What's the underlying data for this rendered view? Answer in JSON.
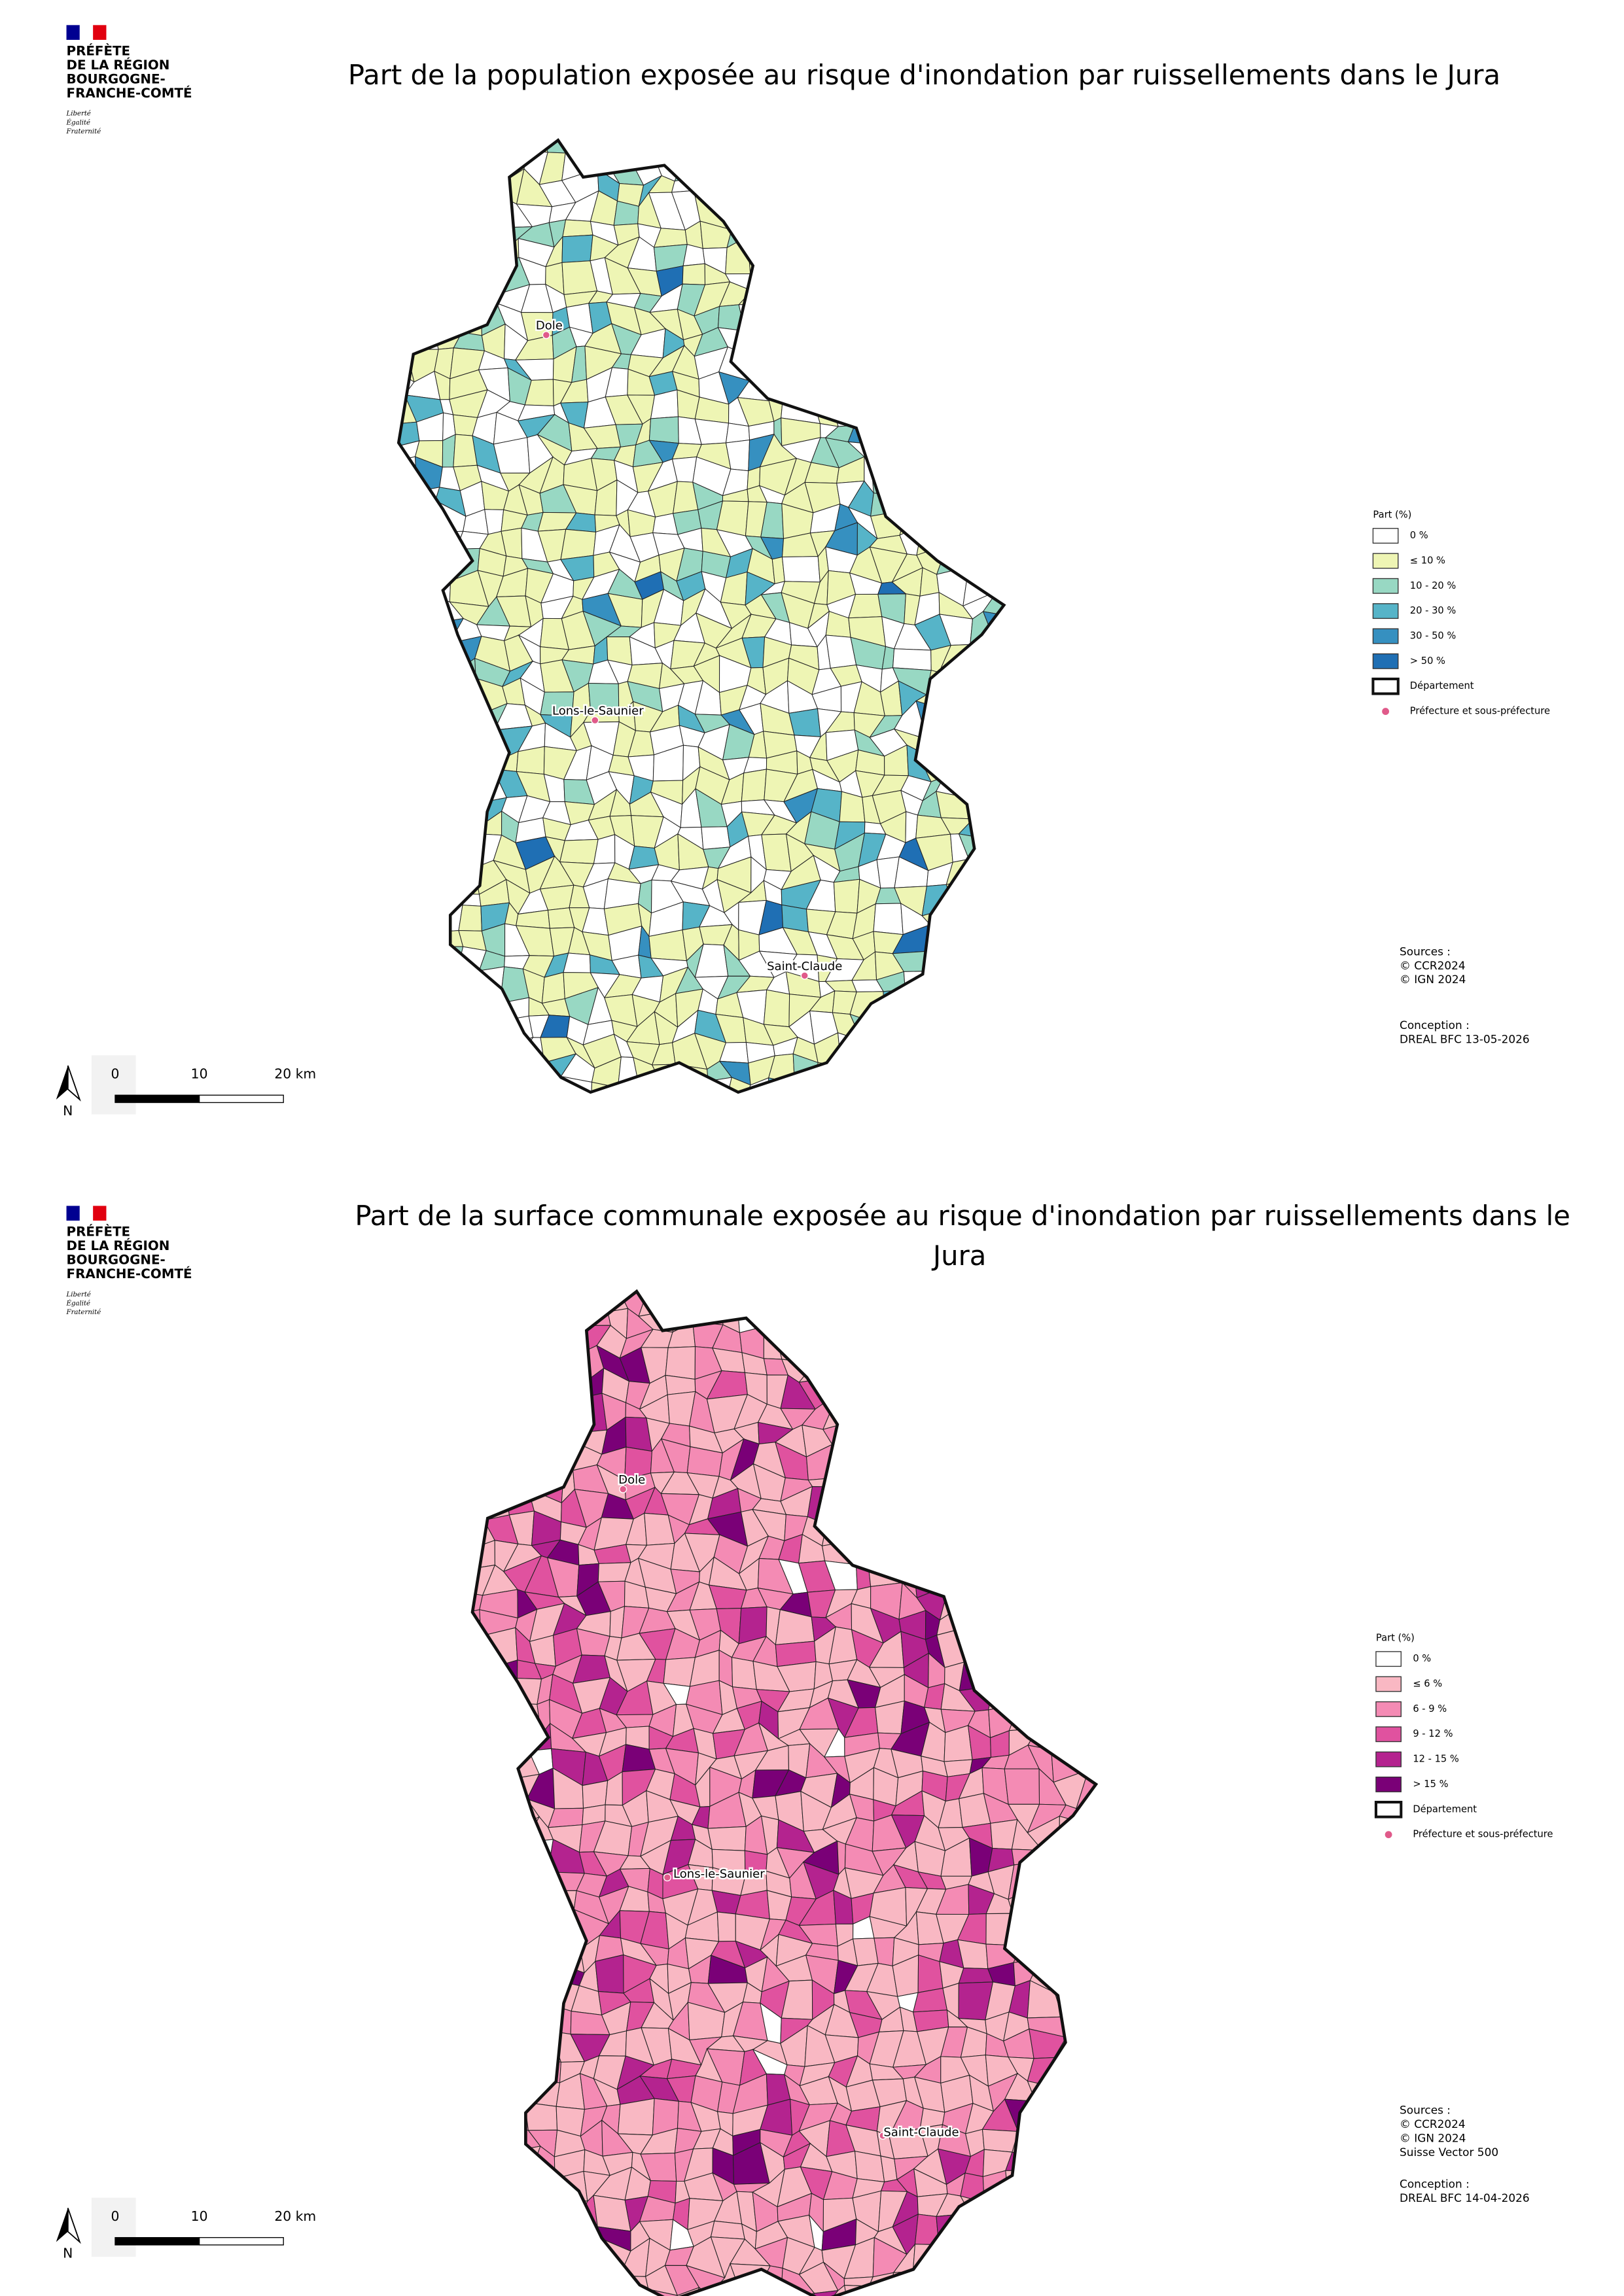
{
  "logo": {
    "lines": [
      "PRÉFÈTE",
      "DE LA RÉGION",
      "BOURGOGNE-",
      "FRANCHE-COMTÉ"
    ],
    "motto": [
      "Liberté",
      "Égalité",
      "Fraternité"
    ]
  },
  "maps": [
    {
      "title_lines": [
        "Part de la population exposée au risque d'inondation par ruissellements dans le Jura"
      ],
      "legend": {
        "title": "Part (%)",
        "items": [
          {
            "label": "0 %",
            "color": "#ffffff"
          },
          {
            "label": "≤ 10 %",
            "color": "#eef5b4"
          },
          {
            "label": "10 - 20 %",
            "color": "#98d8c3"
          },
          {
            "label": "20 - 30 %",
            "color": "#56b4c8"
          },
          {
            "label": "30 - 50 %",
            "color": "#3690c0"
          },
          {
            "label": "> 50 %",
            "color": "#1f6fb4"
          }
        ],
        "department": "Département",
        "prefecture": "Préfecture et sous-préfecture"
      },
      "places": [
        "Dole",
        "Lons-le-Saunier",
        "Saint-Claude"
      ],
      "sources": [
        "Sources :",
        "© CCR2024",
        "© IGN 2024"
      ],
      "conception": [
        "Conception :",
        "DREAL BFC 13-05-2026"
      ],
      "scale": [
        "0",
        "10",
        "20 km"
      ],
      "north": "N"
    },
    {
      "title_lines": [
        "Part de la surface communale exposée au risque d'inondation par ruissellements dans le",
        "Jura"
      ],
      "legend": {
        "title": "Part (%)",
        "items": [
          {
            "label": "0 %",
            "color": "#ffffff"
          },
          {
            "label": "≤ 6 %",
            "color": "#f9b8c3"
          },
          {
            "label": "6 - 9 %",
            "color": "#f48bb4"
          },
          {
            "label": "9 - 12 %",
            "color": "#e0529f"
          },
          {
            "label": "12 - 15 %",
            "color": "#b4238f"
          },
          {
            "label": "> 15 %",
            "color": "#7a0077"
          }
        ],
        "department": "Département",
        "prefecture": "Préfecture et sous-préfecture"
      },
      "places": [
        "Dole",
        "Lons-le-Saunier",
        "Saint-Claude"
      ],
      "sources": [
        "Sources :",
        "© CCR2024",
        "© IGN 2024",
        "Suisse Vector 500"
      ],
      "conception": [
        "Conception :",
        "DREAL BFC 14-04-2026"
      ],
      "scale": [
        "0",
        "10",
        "20 km"
      ],
      "north": "N"
    }
  ]
}
